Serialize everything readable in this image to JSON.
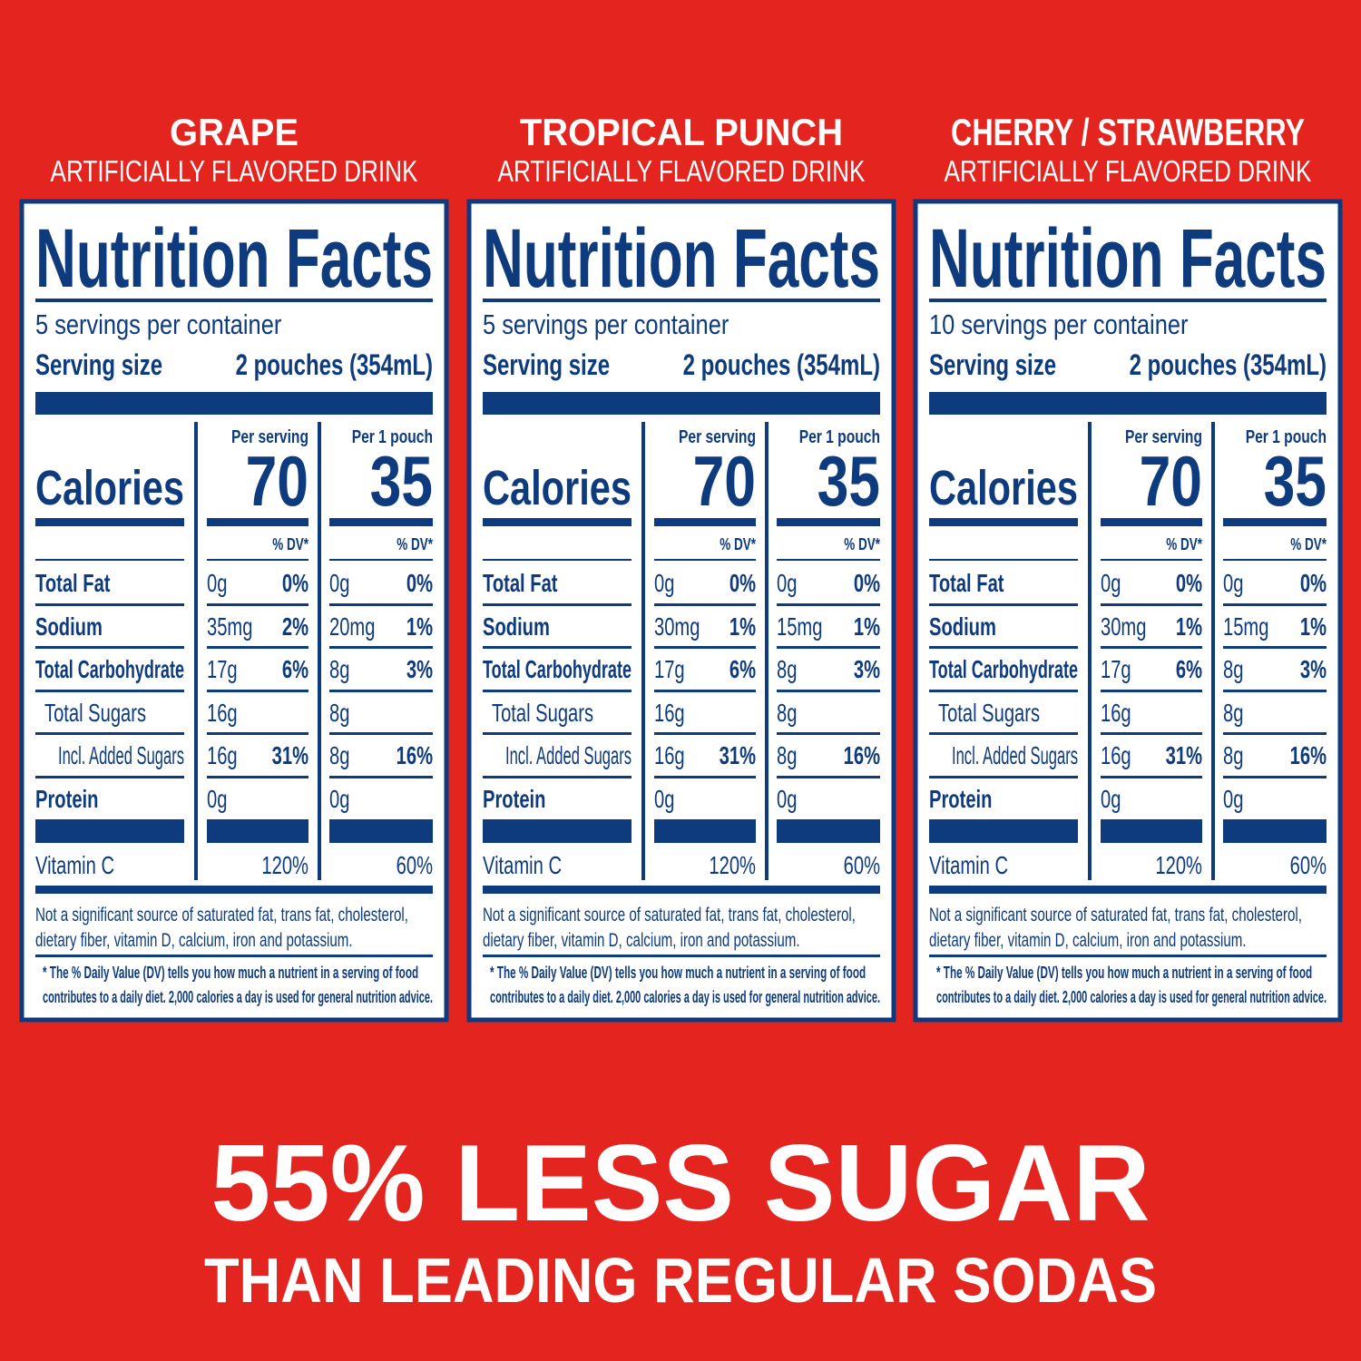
{
  "panels": [
    {
      "flavor": "GRAPE",
      "subtitle": "ARTIFICIALLY FLAVORED DRINK",
      "title": "Nutrition Facts",
      "servings": "5 servings per container",
      "serving_size_label": "Serving size",
      "serving_size": "2 pouches (354mL)",
      "calories_label": "Calories",
      "per_serving_header": "Per serving",
      "per_pouch_header": "Per 1 pouch",
      "per_serving_calories": "70",
      "per_pouch_calories": "35",
      "dv_header": "% DV*",
      "rows": [
        {
          "nutrient": "Total Fat",
          "per_serving": "0g",
          "per_serving_dv": "0%",
          "per_pouch": "0g",
          "per_pouch_dv": "0%"
        },
        {
          "nutrient": "Sodium",
          "per_serving": "35mg",
          "per_serving_dv": "2%",
          "per_pouch": "20mg",
          "per_pouch_dv": "1%"
        },
        {
          "nutrient": "Total Carbohydrate",
          "per_serving": "17g",
          "per_serving_dv": "6%",
          "per_pouch": "8g",
          "per_pouch_dv": "3%"
        },
        {
          "nutrient": "Total Sugars",
          "per_serving": "16g",
          "per_pouch": "8g"
        },
        {
          "nutrient": "Incl. Added Sugars",
          "per_serving": "16g",
          "per_serving_dv": "31%",
          "per_pouch": "8g",
          "per_pouch_dv": "16%"
        },
        {
          "nutrient": "Protein",
          "per_serving": "0g",
          "per_pouch": "0g"
        }
      ],
      "vitamin": {
        "nutrient": "Vitamin C",
        "per_serving_dv": "120%",
        "per_pouch_dv": "60%"
      },
      "note": [
        "Not a significant source of saturated fat, trans fat, cholesterol,",
        "dietary fiber, vitamin D, calcium, iron and potassium."
      ],
      "footnote": [
        "* The % Daily Value (DV) tells you how much a nutrient in a serving of food",
        "contributes to a daily diet. 2,000 calories a day is used for general nutrition advice."
      ]
    },
    {
      "flavor": "TROPICAL PUNCH",
      "subtitle": "ARTIFICIALLY FLAVORED DRINK",
      "title": "Nutrition Facts",
      "servings": "5 servings per container",
      "serving_size_label": "Serving size",
      "serving_size": "2 pouches (354mL)",
      "calories_label": "Calories",
      "per_serving_header": "Per serving",
      "per_pouch_header": "Per 1 pouch",
      "per_serving_calories": "70",
      "per_pouch_calories": "35",
      "dv_header": "% DV*",
      "rows": [
        {
          "nutrient": "Total Fat",
          "per_serving": "0g",
          "per_serving_dv": "0%",
          "per_pouch": "0g",
          "per_pouch_dv": "0%"
        },
        {
          "nutrient": "Sodium",
          "per_serving": "30mg",
          "per_serving_dv": "1%",
          "per_pouch": "15mg",
          "per_pouch_dv": "1%"
        },
        {
          "nutrient": "Total Carbohydrate",
          "per_serving": "17g",
          "per_serving_dv": "6%",
          "per_pouch": "8g",
          "per_pouch_dv": "3%"
        },
        {
          "nutrient": "Total Sugars",
          "per_serving": "16g",
          "per_pouch": "8g"
        },
        {
          "nutrient": "Incl. Added Sugars",
          "per_serving": "16g",
          "per_serving_dv": "31%",
          "per_pouch": "8g",
          "per_pouch_dv": "16%"
        },
        {
          "nutrient": "Protein",
          "per_serving": "0g",
          "per_pouch": "0g"
        }
      ],
      "vitamin": {
        "nutrient": "Vitamin C",
        "per_serving_dv": "120%",
        "per_pouch_dv": "60%"
      },
      "note": [
        "Not a significant source of saturated fat, trans fat, cholesterol,",
        "dietary fiber, vitamin D, calcium, iron and potassium."
      ],
      "footnote": [
        "* The % Daily Value (DV) tells you how much a nutrient in a serving of food",
        "contributes to a daily diet. 2,000 calories a day is used for general nutrition advice."
      ]
    },
    {
      "flavor": "CHERRY / STRAWBERRY",
      "subtitle": "ARTIFICIALLY FLAVORED DRINK",
      "title": "Nutrition Facts",
      "servings": "10 servings per container",
      "serving_size_label": "Serving size",
      "serving_size": "2 pouches (354mL)",
      "calories_label": "Calories",
      "per_serving_header": "Per serving",
      "per_pouch_header": "Per 1 pouch",
      "per_serving_calories": "70",
      "per_pouch_calories": "35",
      "dv_header": "% DV*",
      "rows": [
        {
          "nutrient": "Total Fat",
          "per_serving": "0g",
          "per_serving_dv": "0%",
          "per_pouch": "0g",
          "per_pouch_dv": "0%"
        },
        {
          "nutrient": "Sodium",
          "per_serving": "30mg",
          "per_serving_dv": "1%",
          "per_pouch": "15mg",
          "per_pouch_dv": "1%"
        },
        {
          "nutrient": "Total Carbohydrate",
          "per_serving": "17g",
          "per_serving_dv": "6%",
          "per_pouch": "8g",
          "per_pouch_dv": "3%"
        },
        {
          "nutrient": "Total Sugars",
          "per_serving": "16g",
          "per_pouch": "8g"
        },
        {
          "nutrient": "Incl. Added Sugars",
          "per_serving": "16g",
          "per_serving_dv": "31%",
          "per_pouch": "8g",
          "per_pouch_dv": "16%"
        },
        {
          "nutrient": "Protein",
          "per_serving": "0g",
          "per_pouch": "0g"
        }
      ],
      "vitamin": {
        "nutrient": "Vitamin C",
        "per_serving_dv": "120%",
        "per_pouch_dv": "60%"
      },
      "note": [
        "Not a significant source of saturated fat, trans fat, cholesterol,",
        "dietary fiber, vitamin D, calcium, iron and potassium."
      ],
      "footnote": [
        "* The % Daily Value (DV) tells you how much a nutrient in a serving of food",
        "contributes to a daily diet. 2,000 calories a day is used for general nutrition advice."
      ]
    }
  ],
  "headline": "55% LESS SUGAR",
  "subheadline": "THAN LEADING REGULAR SODAS"
}
